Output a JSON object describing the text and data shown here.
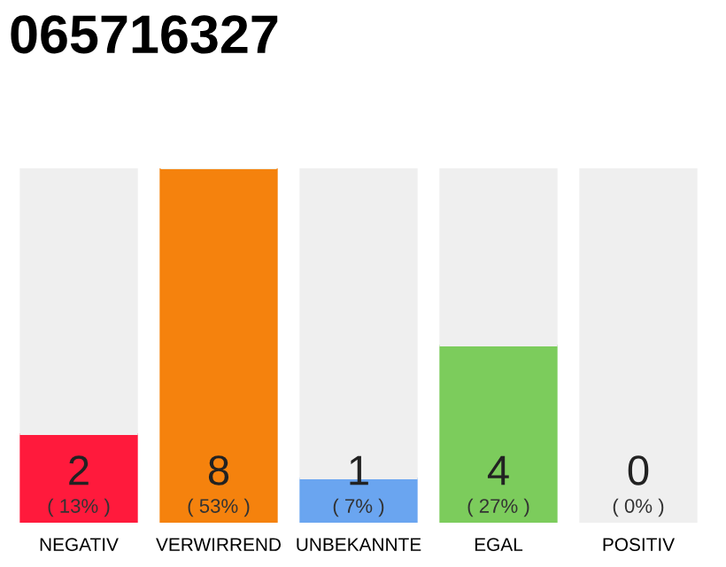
{
  "chart_data": {
    "type": "bar",
    "title": "065716327",
    "categories": [
      "NEGATIV",
      "VERWIRREND",
      "UNBEKANNTE",
      "EGAL",
      "POSITIV"
    ],
    "stacked": true,
    "ylim": [
      0,
      8
    ],
    "tick_labels": "x",
    "grid": false,
    "legend": false,
    "series": [
      {
        "colors": [
          "#ff1a3c",
          "#f5820d",
          "#6aa5f0",
          "#7ccc5c",
          "#efefef"
        ],
        "values": [
          2,
          8,
          1,
          4,
          0
        ],
        "value_labels": [
          "2\n( 13% )",
          "8\n( 53% )",
          "1\n( 7% )",
          "4\n( 27% )",
          "0\n( 0% )"
        ]
      },
      {
        "color": "#efefef",
        "values": [
          6,
          0,
          7,
          4,
          8
        ]
      }
    ]
  }
}
